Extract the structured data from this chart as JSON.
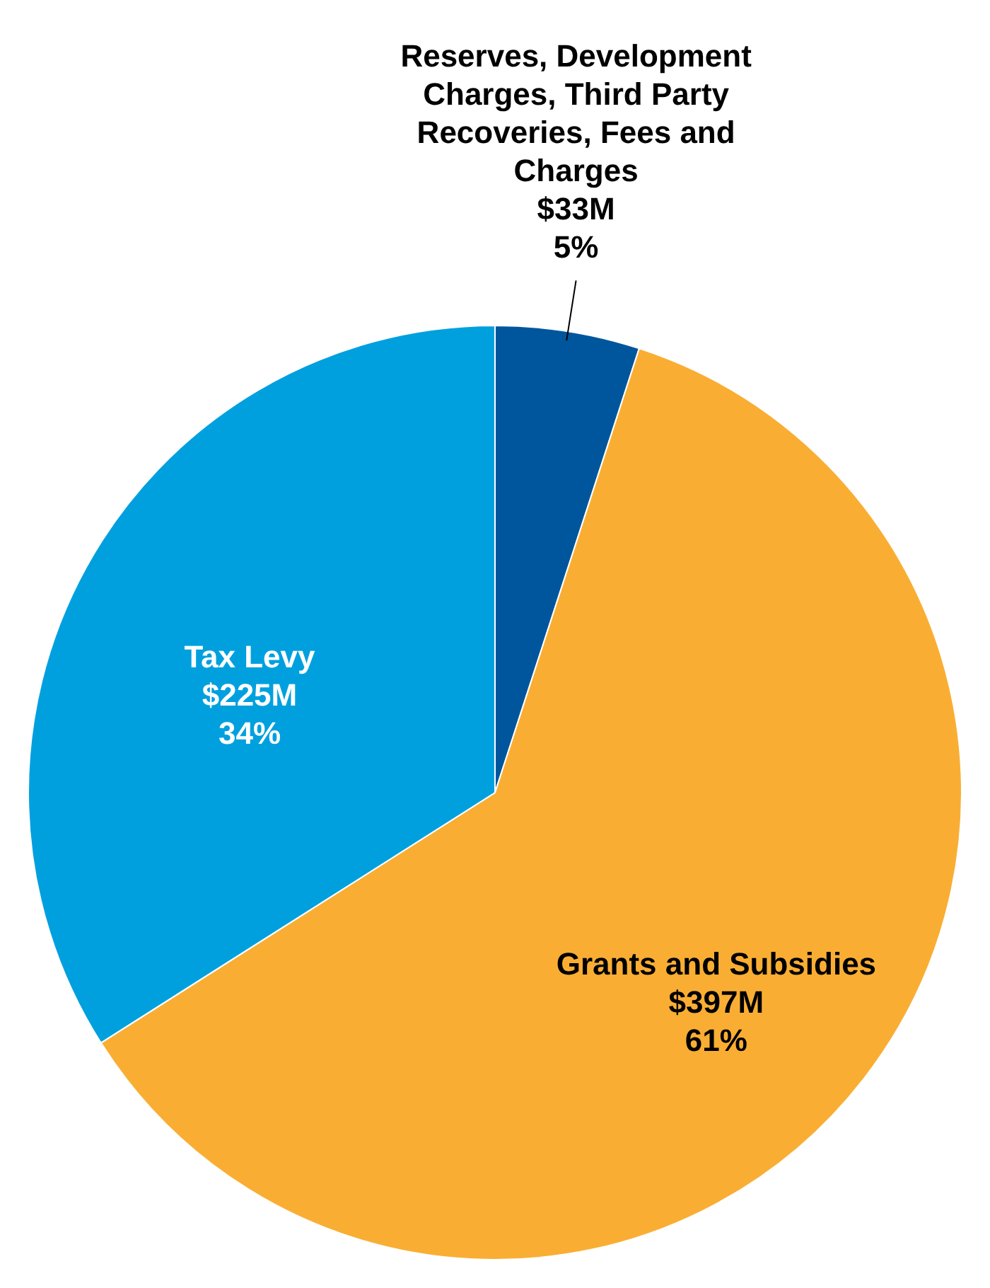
{
  "chart_data": {
    "type": "pie",
    "categories": [
      "Reserves, Development Charges, Third Party Recoveries, Fees and Charges",
      "Grants and Subsidies",
      "Tax Levy"
    ],
    "values": [
      5,
      61,
      34
    ],
    "value_labels": [
      "$33M\n5%",
      "$397M\n61%",
      "$225M\n34%"
    ],
    "colors": [
      "#00569c",
      "#f9ae33",
      "#00a0df"
    ],
    "legend": false
  }
}
